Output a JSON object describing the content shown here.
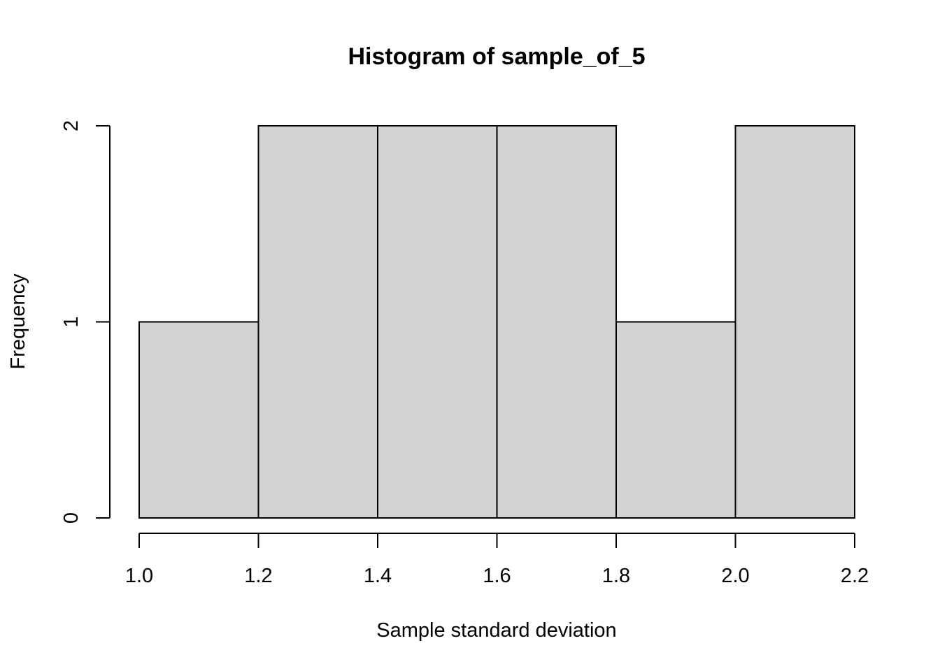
{
  "chart_data": {
    "type": "bar",
    "title": "Histogram of sample_of_5",
    "xlabel": "Sample standard deviation",
    "ylabel": "Frequency",
    "bins": [
      {
        "start": 1.0,
        "end": 1.2,
        "count": 1
      },
      {
        "start": 1.2,
        "end": 1.4,
        "count": 2
      },
      {
        "start": 1.4,
        "end": 1.6,
        "count": 2
      },
      {
        "start": 1.6,
        "end": 1.8,
        "count": 2
      },
      {
        "start": 1.8,
        "end": 2.0,
        "count": 1
      },
      {
        "start": 2.0,
        "end": 2.2,
        "count": 2
      }
    ],
    "xlim": [
      1.0,
      2.2
    ],
    "ylim": [
      0,
      2
    ],
    "x_ticks": [
      "1.0",
      "1.2",
      "1.4",
      "1.6",
      "1.8",
      "2.0",
      "2.2"
    ],
    "y_ticks": [
      "0",
      "1",
      "2"
    ],
    "bar_fill": "#d3d3d3",
    "bar_stroke": "#000000",
    "grid": false
  }
}
